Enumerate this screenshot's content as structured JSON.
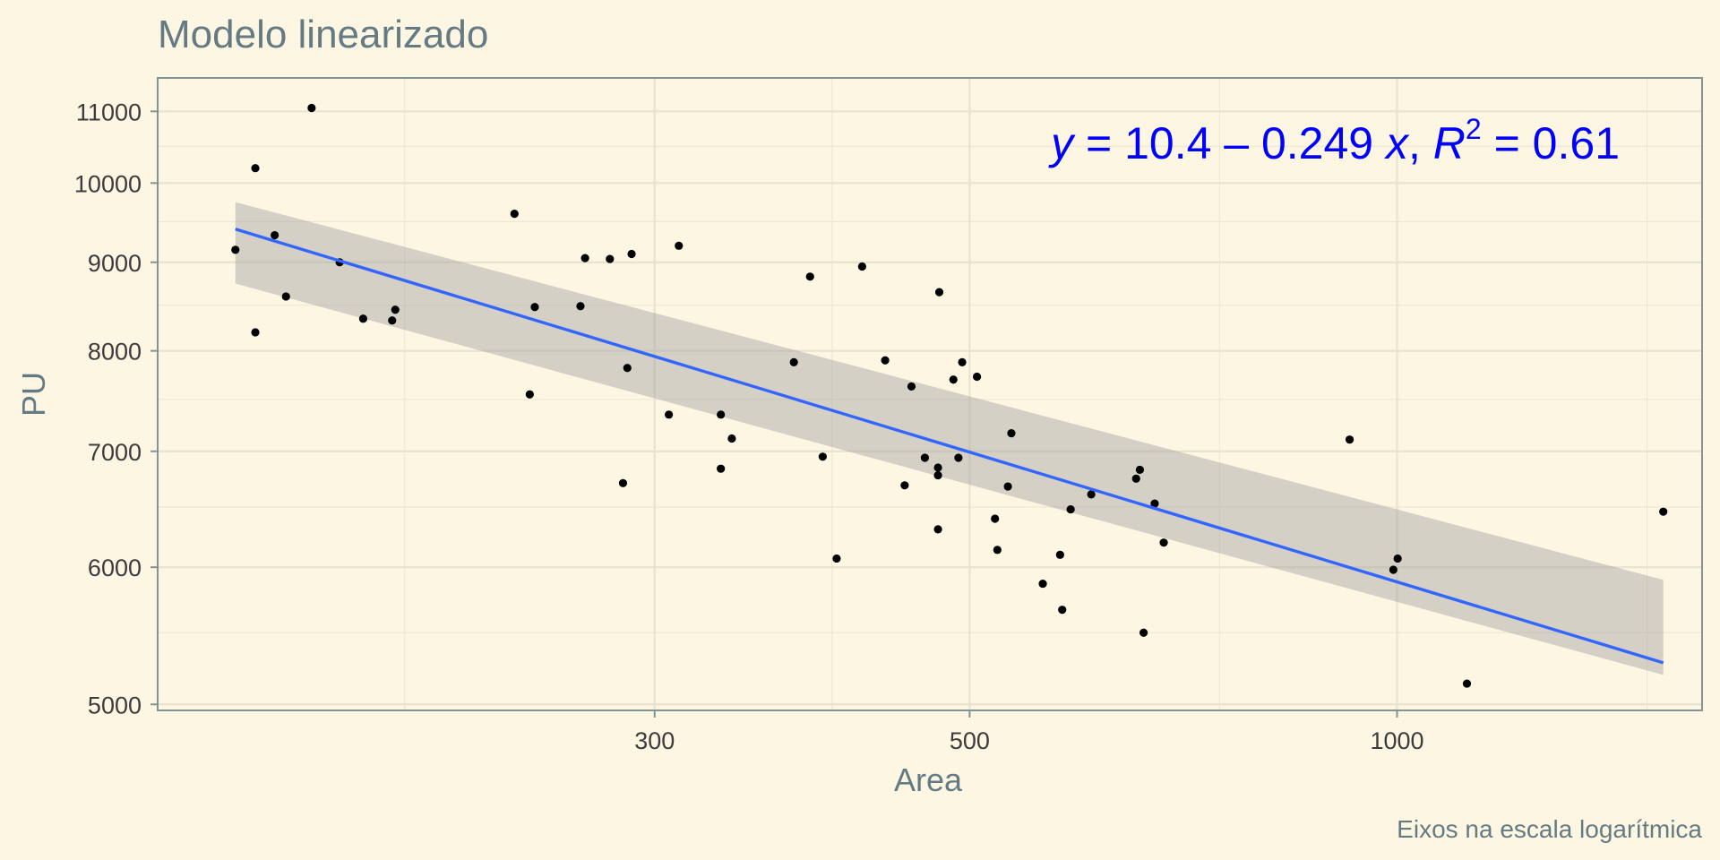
{
  "chart_data": {
    "type": "scatter",
    "title": "Modelo linearizado",
    "xlabel": "Area",
    "ylabel": "PU",
    "caption": "Eixos na escala logarítmica",
    "x_scale": "log",
    "y_scale": "log",
    "xlim": [
      134,
      1640
    ],
    "ylim": [
      4960,
      11500
    ],
    "x_ticks": [
      300,
      500,
      1000
    ],
    "x_tick_labels": [
      "300",
      "500",
      "1000"
    ],
    "x_minor_ticks": [
      200,
      400,
      750,
      1500
    ],
    "y_ticks": [
      5000,
      6000,
      7000,
      8000,
      9000,
      10000,
      11000
    ],
    "y_tick_labels": [
      "5000",
      "6000",
      "7000",
      "8000",
      "9000",
      "10000",
      "11000"
    ],
    "y_minor_ticks": [
      5500,
      6500,
      7500,
      8500,
      9500,
      10500
    ],
    "grid": true,
    "equation": {
      "y_var": "y",
      "eq1": " = 10.4 – 0.249 ",
      "x_var": "x",
      "sep": ", ",
      "r_var": "R",
      "r_exp": "2",
      "eq2": " = 0.61",
      "position": "top-right"
    },
    "fit": {
      "intercept": 10.4,
      "slope": -0.249,
      "r_squared": 0.61,
      "x_range": [
        152,
        1540
      ],
      "ci_lower_at_start": 8750,
      "ci_upper_at_start": 9750,
      "ci_lower_at_end": 5200,
      "ci_upper_at_end": 5900,
      "line_color": "#3366FF",
      "band_color": "#999999"
    },
    "points": [
      {
        "x": 152,
        "y": 9150
      },
      {
        "x": 157,
        "y": 8200
      },
      {
        "x": 157,
        "y": 10200
      },
      {
        "x": 162,
        "y": 9330
      },
      {
        "x": 165,
        "y": 8600
      },
      {
        "x": 172,
        "y": 11050
      },
      {
        "x": 180,
        "y": 9000
      },
      {
        "x": 187,
        "y": 8350
      },
      {
        "x": 196,
        "y": 8330
      },
      {
        "x": 197,
        "y": 8450
      },
      {
        "x": 239,
        "y": 9600
      },
      {
        "x": 245,
        "y": 7550
      },
      {
        "x": 247,
        "y": 8480
      },
      {
        "x": 266,
        "y": 8490
      },
      {
        "x": 268,
        "y": 9050
      },
      {
        "x": 279,
        "y": 9040
      },
      {
        "x": 285,
        "y": 6710
      },
      {
        "x": 287,
        "y": 7820
      },
      {
        "x": 289,
        "y": 9100
      },
      {
        "x": 307,
        "y": 7350
      },
      {
        "x": 312,
        "y": 9200
      },
      {
        "x": 334,
        "y": 7350
      },
      {
        "x": 334,
        "y": 6840
      },
      {
        "x": 340,
        "y": 7120
      },
      {
        "x": 376,
        "y": 7880
      },
      {
        "x": 386,
        "y": 8830
      },
      {
        "x": 394,
        "y": 6950
      },
      {
        "x": 403,
        "y": 6070
      },
      {
        "x": 420,
        "y": 8950
      },
      {
        "x": 436,
        "y": 7900
      },
      {
        "x": 450,
        "y": 6690
      },
      {
        "x": 455,
        "y": 7630
      },
      {
        "x": 465,
        "y": 6940
      },
      {
        "x": 475,
        "y": 6850
      },
      {
        "x": 475,
        "y": 6780
      },
      {
        "x": 475,
        "y": 6310
      },
      {
        "x": 476,
        "y": 8650
      },
      {
        "x": 487,
        "y": 7700
      },
      {
        "x": 491,
        "y": 6940
      },
      {
        "x": 494,
        "y": 7880
      },
      {
        "x": 506,
        "y": 7730
      },
      {
        "x": 521,
        "y": 6400
      },
      {
        "x": 523,
        "y": 6140
      },
      {
        "x": 532,
        "y": 6680
      },
      {
        "x": 535,
        "y": 7170
      },
      {
        "x": 563,
        "y": 5870
      },
      {
        "x": 579,
        "y": 6100
      },
      {
        "x": 581,
        "y": 5670
      },
      {
        "x": 589,
        "y": 6480
      },
      {
        "x": 609,
        "y": 6610
      },
      {
        "x": 655,
        "y": 6750
      },
      {
        "x": 659,
        "y": 6830
      },
      {
        "x": 663,
        "y": 5500
      },
      {
        "x": 675,
        "y": 6530
      },
      {
        "x": 685,
        "y": 6200
      },
      {
        "x": 926,
        "y": 7110
      },
      {
        "x": 994,
        "y": 5980
      },
      {
        "x": 1001,
        "y": 6070
      },
      {
        "x": 1120,
        "y": 5140
      },
      {
        "x": 1540,
        "y": 6460
      }
    ]
  }
}
